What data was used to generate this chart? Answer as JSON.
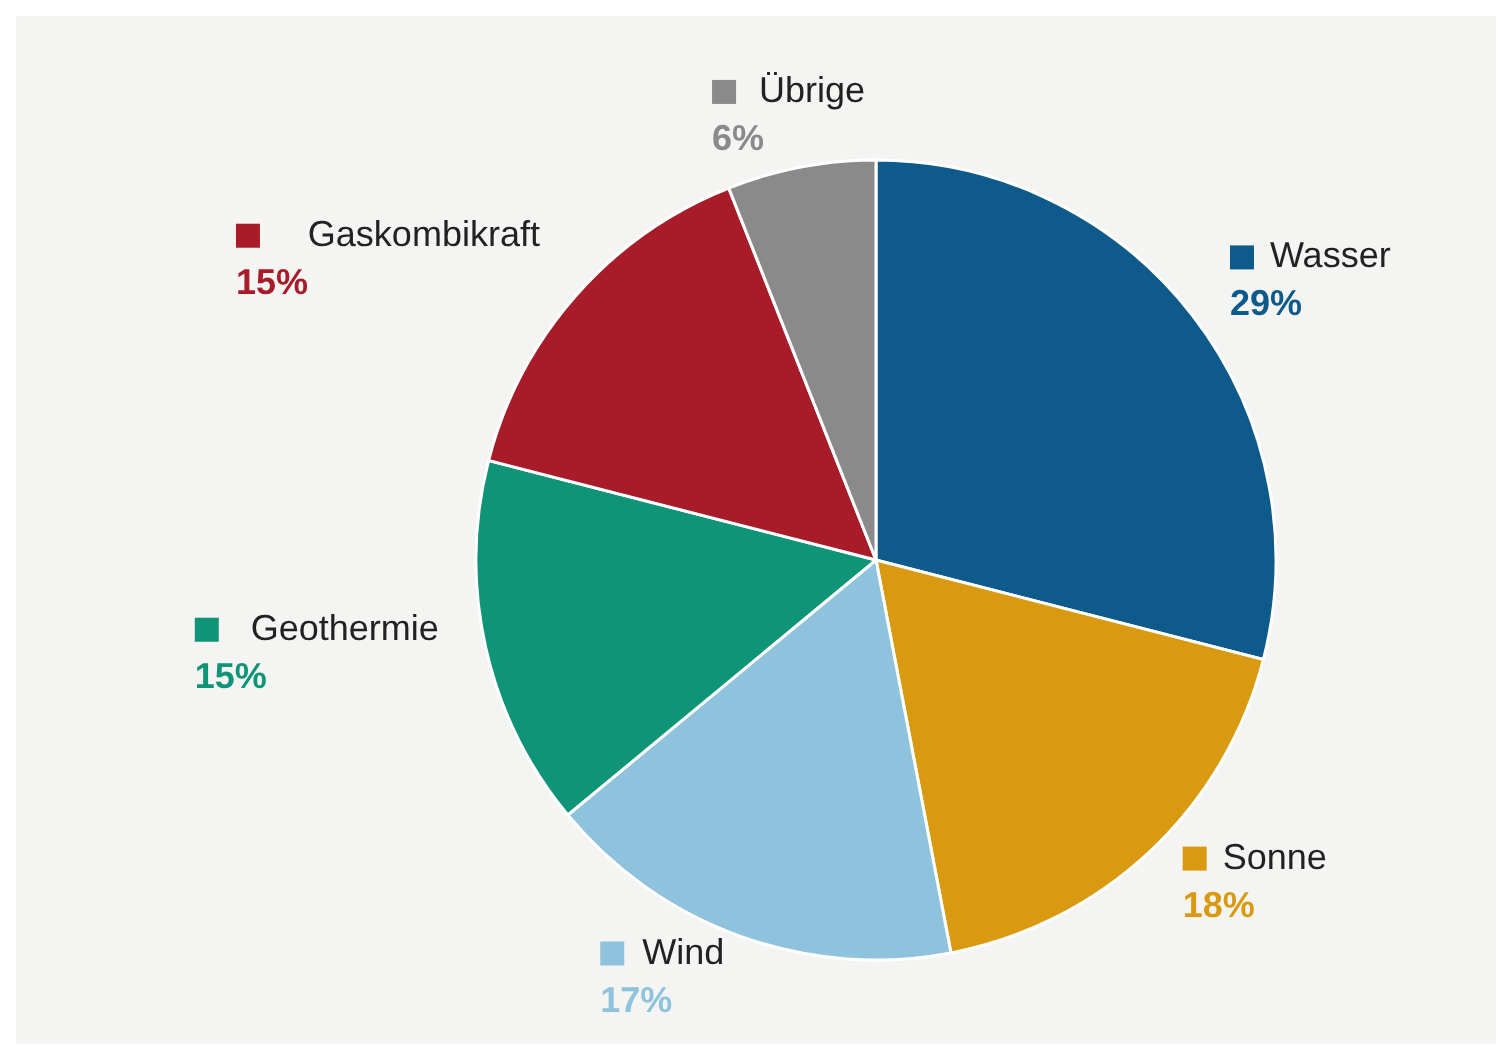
{
  "chart_data": {
    "type": "pie",
    "categories": [
      "Wasser",
      "Sonne",
      "Wind",
      "Geothermie",
      "Gaskombikraft",
      "Übrige"
    ],
    "values": [
      29,
      18,
      17,
      15,
      15,
      6
    ],
    "value_labels": [
      "29%",
      "18%",
      "17%",
      "15%",
      "15%",
      "6%"
    ],
    "legend": "top left",
    "colors": [
      "#0e5a8a",
      "#d99a12",
      "#8fc3dd",
      "#0f9478",
      "#a81c2a",
      "#8a8a8a"
    ]
  }
}
